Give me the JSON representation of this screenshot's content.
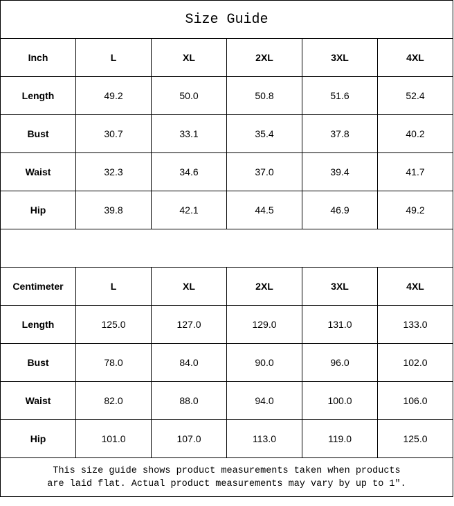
{
  "title": "Size Guide",
  "inch_table": {
    "header": [
      "Inch",
      "L",
      "XL",
      "2XL",
      "3XL",
      "4XL"
    ],
    "rows": [
      {
        "label": "Length",
        "values": [
          "49.2",
          "50.0",
          "50.8",
          "51.6",
          "52.4"
        ]
      },
      {
        "label": "Bust",
        "values": [
          "30.7",
          "33.1",
          "35.4",
          "37.8",
          "40.2"
        ]
      },
      {
        "label": "Waist",
        "values": [
          "32.3",
          "34.6",
          "37.0",
          "39.4",
          "41.7"
        ]
      },
      {
        "label": "Hip",
        "values": [
          "39.8",
          "42.1",
          "44.5",
          "46.9",
          "49.2"
        ]
      }
    ]
  },
  "cm_table": {
    "header": [
      "Centimeter",
      "L",
      "XL",
      "2XL",
      "3XL",
      "4XL"
    ],
    "rows": [
      {
        "label": "Length",
        "values": [
          "125.0",
          "127.0",
          "129.0",
          "131.0",
          "133.0"
        ]
      },
      {
        "label": "Bust",
        "values": [
          "78.0",
          "84.0",
          "90.0",
          "96.0",
          "102.0"
        ]
      },
      {
        "label": "Waist",
        "values": [
          "82.0",
          "88.0",
          "94.0",
          "100.0",
          "106.0"
        ]
      },
      {
        "label": "Hip",
        "values": [
          "101.0",
          "107.0",
          "113.0",
          "119.0",
          "125.0"
        ]
      }
    ]
  },
  "note": {
    "line1": "This size guide shows product measurements taken when products",
    "line2": "are laid flat. Actual product measurements may vary by up to 1″."
  }
}
